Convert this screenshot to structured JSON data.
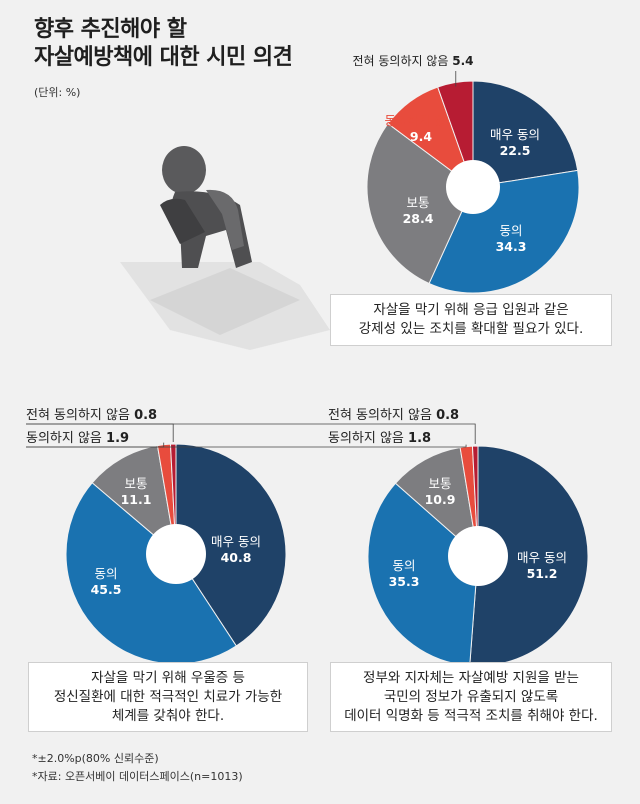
{
  "title_line1": "향후 추진해야 할",
  "title_line2": "자살예방책에 대한 시민 의견",
  "unit": "(단위: %)",
  "colors": {
    "매우 동의": "#1f4268",
    "동의": "#1a72b0",
    "보통": "#7d7d80",
    "동의하지 않음": "#e84c3d",
    "전혀 동의하지 않음": "#b71c33"
  },
  "chart_data": [
    {
      "type": "pie",
      "caption": [
        "자살을 막기 위해 응급 입원과 같은",
        "강제성 있는 조치를 확대할 필요가 있다."
      ],
      "categories": [
        "매우 동의",
        "동의",
        "보통",
        "동의하지 않음",
        "전혀 동의하지 않음"
      ],
      "values": [
        22.5,
        34.3,
        28.4,
        9.4,
        5.4
      ]
    },
    {
      "type": "pie",
      "caption": [
        "자살을 막기 위해 우울증 등",
        "정신질환에 대한 적극적인 치료가 가능한",
        "체계를 갖춰야 한다."
      ],
      "categories": [
        "매우 동의",
        "동의",
        "보통",
        "동의하지 않음",
        "전혀 동의하지 않음"
      ],
      "values": [
        40.8,
        45.5,
        11.1,
        1.9,
        0.8
      ]
    },
    {
      "type": "pie",
      "caption": [
        "정부와 지자체는 자살예방 지원을 받는",
        "국민의 정보가 유출되지 않도록",
        "데이터 익명화 등 적극적 조치를 취해야 한다."
      ],
      "categories": [
        "매우 동의",
        "동의",
        "보통",
        "동의하지 않음",
        "전혀 동의하지 않음"
      ],
      "values": [
        51.2,
        35.3,
        10.9,
        1.8,
        0.8
      ]
    }
  ],
  "footnotes": [
    "*±2.0%p(80% 신뢰수준)",
    "*자료: 오픈서베이 데이터스페이스(n=1013)"
  ]
}
